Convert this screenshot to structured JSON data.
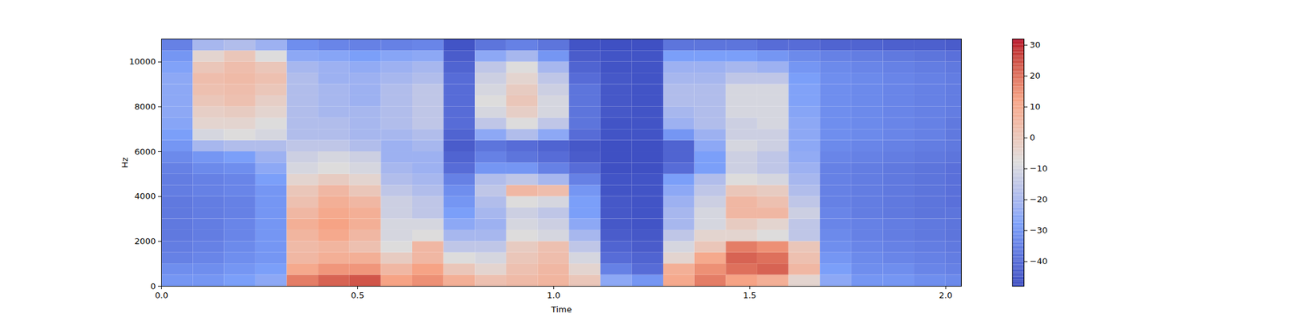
{
  "chart_data": {
    "type": "heatmap",
    "x_label": "Time",
    "y_label": "Hz",
    "xlim": [
      0,
      2.04
    ],
    "ylim": [
      0,
      11025
    ],
    "xticks": [
      0,
      0.5,
      1,
      1.5,
      2
    ],
    "yticks": [
      0,
      2000,
      4000,
      6000,
      8000,
      10000
    ],
    "x_edges": [
      0,
      0.08,
      0.16,
      0.24,
      0.32,
      0.4,
      0.48,
      0.56,
      0.64,
      0.72,
      0.8,
      0.88,
      0.96,
      1.04,
      1.12,
      1.2,
      1.28,
      1.36,
      1.44,
      1.52,
      1.6,
      1.68,
      1.76,
      1.84,
      1.92,
      2.0,
      2.04
    ],
    "y_edges": [
      0,
      500,
      1000,
      1500,
      2000,
      2500,
      3000,
      3500,
      4000,
      4500,
      5000,
      5500,
      6000,
      6500,
      7000,
      7500,
      8000,
      8500,
      9000,
      9500,
      10000,
      10500,
      11000,
      11025
    ],
    "values": [
      [
        -30,
        -30,
        -28,
        -25,
        18,
        22,
        24,
        12,
        15,
        8,
        2,
        4,
        6,
        0,
        -25,
        -30,
        10,
        18,
        12,
        8,
        -5,
        -25,
        -30,
        -30,
        -32,
        -33
      ],
      [
        -32,
        -32,
        -30,
        -28,
        10,
        14,
        14,
        5,
        12,
        0,
        -5,
        2,
        5,
        -5,
        -35,
        -40,
        8,
        15,
        20,
        22,
        5,
        -28,
        -32,
        -32,
        -34,
        -35
      ],
      [
        -35,
        -34,
        -32,
        -30,
        5,
        8,
        8,
        -2,
        5,
        -8,
        -10,
        0,
        3,
        -10,
        -40,
        -42,
        -5,
        10,
        22,
        20,
        2,
        -30,
        -33,
        -34,
        -35,
        -36
      ],
      [
        -36,
        -35,
        -33,
        -30,
        4,
        6,
        2,
        -8,
        5,
        -15,
        -15,
        -2,
        2,
        -15,
        -42,
        -44,
        -10,
        0,
        18,
        15,
        0,
        -32,
        -34,
        -35,
        -36,
        -37
      ],
      [
        -37,
        -36,
        -34,
        -30,
        6,
        10,
        5,
        -10,
        -8,
        -20,
        -20,
        -8,
        -10,
        -20,
        -44,
        -45,
        -15,
        -5,
        -5,
        -8,
        -15,
        -33,
        -35,
        -36,
        -37,
        -38
      ],
      [
        -37,
        -36,
        -34,
        -30,
        8,
        12,
        8,
        -10,
        -10,
        -25,
        -22,
        -10,
        -12,
        -25,
        -45,
        -46,
        -20,
        -10,
        -2,
        -5,
        -15,
        -34,
        -35,
        -36,
        -37,
        -38
      ],
      [
        -37,
        -36,
        -35,
        -30,
        5,
        10,
        8,
        -12,
        -15,
        -28,
        -20,
        -12,
        -15,
        -28,
        -45,
        -46,
        -20,
        -10,
        5,
        5,
        -12,
        -34,
        -36,
        -37,
        -38,
        -38
      ],
      [
        -37,
        -36,
        -35,
        -30,
        2,
        8,
        5,
        -12,
        -15,
        -30,
        -18,
        -8,
        -10,
        -28,
        -45,
        -46,
        -22,
        -12,
        5,
        2,
        -15,
        -35,
        -36,
        -37,
        -38,
        -39
      ],
      [
        -36,
        -35,
        -34,
        -30,
        0,
        5,
        0,
        -15,
        -18,
        -32,
        -15,
        5,
        3,
        -30,
        -46,
        -46,
        -25,
        -15,
        0,
        -2,
        -18,
        -35,
        -36,
        -37,
        -38,
        -39
      ],
      [
        -36,
        -35,
        -34,
        -28,
        -5,
        -2,
        -5,
        -18,
        -20,
        -35,
        -18,
        -15,
        -20,
        -35,
        -46,
        -46,
        -28,
        -18,
        -8,
        -10,
        -20,
        -35,
        -36,
        -37,
        -38,
        -39
      ],
      [
        -35,
        -33,
        -32,
        -25,
        -10,
        -8,
        -10,
        -20,
        -22,
        -40,
        -30,
        -30,
        -35,
        -40,
        -47,
        -47,
        -40,
        -28,
        -12,
        -15,
        -22,
        -35,
        -36,
        -37,
        -38,
        -39
      ],
      [
        -33,
        -30,
        -28,
        -22,
        -12,
        -10,
        -12,
        -22,
        -22,
        -42,
        -35,
        -38,
        -40,
        -44,
        -47,
        -47,
        -42,
        -28,
        -12,
        -15,
        -24,
        -34,
        -35,
        -36,
        -37,
        -38
      ],
      [
        -30,
        -20,
        -18,
        -18,
        -15,
        -15,
        -18,
        -22,
        -20,
        -44,
        -38,
        -40,
        -42,
        -45,
        -47,
        -47,
        -42,
        -25,
        -10,
        -12,
        -25,
        -33,
        -34,
        -35,
        -36,
        -37
      ],
      [
        -28,
        -10,
        -8,
        -10,
        -18,
        -18,
        -20,
        -20,
        -18,
        -42,
        -25,
        -18,
        -25,
        -40,
        -46,
        -46,
        -30,
        -22,
        -12,
        -12,
        -25,
        -32,
        -33,
        -34,
        -35,
        -37
      ],
      [
        -26,
        -5,
        -5,
        -8,
        -18,
        -18,
        -20,
        -18,
        -15,
        -40,
        -15,
        -8,
        -15,
        -38,
        -46,
        -46,
        -22,
        -18,
        -12,
        -10,
        -25,
        -32,
        -33,
        -34,
        -35,
        -37
      ],
      [
        -25,
        -3,
        -2,
        -5,
        -18,
        -20,
        -20,
        -18,
        -15,
        -40,
        -10,
        -3,
        -10,
        -38,
        -45,
        -46,
        -20,
        -18,
        -10,
        -10,
        -26,
        -32,
        -33,
        -34,
        -35,
        -36
      ],
      [
        -25,
        0,
        2,
        -3,
        -18,
        -20,
        -22,
        -18,
        -15,
        -40,
        -8,
        0,
        -10,
        -38,
        -45,
        -46,
        -18,
        -18,
        -10,
        -10,
        -27,
        -32,
        -33,
        -34,
        -35,
        -36
      ],
      [
        -25,
        2,
        3,
        0,
        -18,
        -20,
        -22,
        -18,
        -15,
        -40,
        -10,
        -2,
        -12,
        -38,
        -45,
        -46,
        -18,
        -18,
        -10,
        -10,
        -27,
        -32,
        -33,
        -34,
        -35,
        -36
      ],
      [
        -25,
        3,
        4,
        2,
        -18,
        -22,
        -22,
        -20,
        -18,
        -40,
        -12,
        -5,
        -15,
        -40,
        -45,
        -46,
        -20,
        -20,
        -15,
        -15,
        -28,
        -32,
        -33,
        -34,
        -35,
        -36
      ],
      [
        -27,
        0,
        3,
        0,
        -20,
        -22,
        -24,
        -22,
        -20,
        -42,
        -15,
        -8,
        -20,
        -42,
        -46,
        -46,
        -22,
        -22,
        -20,
        -22,
        -30,
        -33,
        -34,
        -35,
        -36,
        -37
      ],
      [
        -30,
        -5,
        0,
        -8,
        -25,
        -26,
        -28,
        -26,
        -25,
        -44,
        -25,
        -20,
        -30,
        -44,
        -46,
        -46,
        -28,
        -28,
        -28,
        -30,
        -33,
        -35,
        -36,
        -37,
        -38,
        -39
      ],
      [
        -35,
        -20,
        -18,
        -22,
        -32,
        -34,
        -35,
        -35,
        -34,
        -46,
        -38,
        -35,
        -38,
        -46,
        -47,
        -47,
        -38,
        -38,
        -38,
        -40,
        -40,
        -42,
        -42,
        -43,
        -43,
        -44
      ],
      [
        -45,
        -44,
        -44,
        -44,
        -45,
        -45,
        -45,
        -45,
        -45,
        -47,
        -46,
        -46,
        -46,
        -47,
        -47,
        -47,
        -46,
        -46,
        -46,
        -46,
        -46,
        -46,
        -46,
        -46,
        -46,
        -46
      ]
    ],
    "colorbar": {
      "range": [
        -48,
        32
      ],
      "ticks": [
        -40,
        -30,
        -20,
        -10,
        0,
        10,
        20,
        30
      ]
    }
  }
}
